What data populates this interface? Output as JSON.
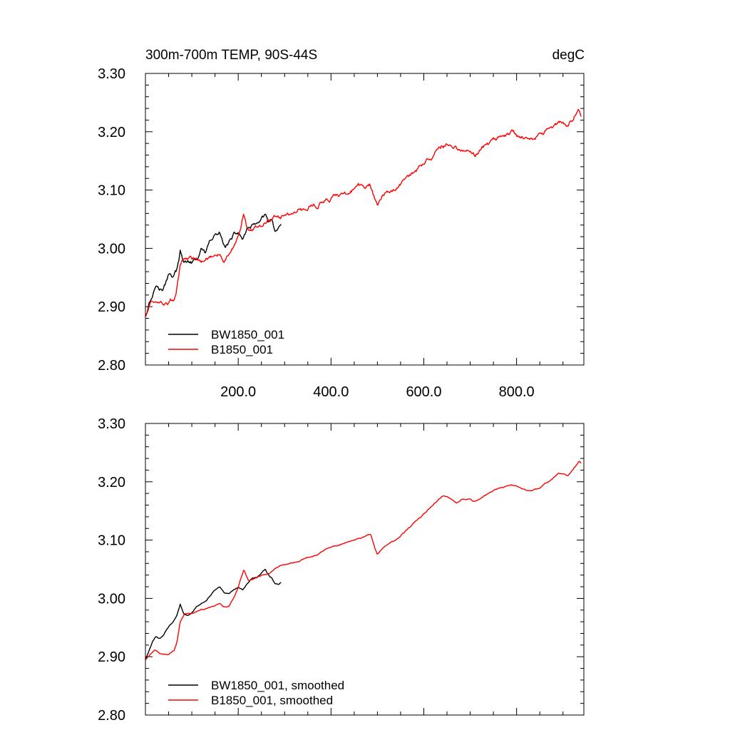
{
  "chart_data": [
    {
      "type": "line",
      "title": "300m-700m TEMP, 90S-44S",
      "units": "degC",
      "xlim": [
        0,
        945
      ],
      "ylim": [
        2.8,
        3.3
      ],
      "x_ticks": [
        200,
        400,
        600,
        800
      ],
      "x_tick_labels": [
        "200.0",
        "400.0",
        "600.0",
        "800.0"
      ],
      "y_ticks": [
        2.8,
        2.9,
        3.0,
        3.1,
        3.2,
        3.3
      ],
      "y_tick_labels": [
        "2.80",
        "2.90",
        "3.00",
        "3.10",
        "3.20",
        "3.30"
      ],
      "legend_position": "bottom-left",
      "series": [
        {
          "name": "BW1850_001",
          "color": "#000000",
          "noise": 0.006,
          "points": [
            [
              0,
              2.885
            ],
            [
              8,
              2.91
            ],
            [
              15,
              2.92
            ],
            [
              22,
              2.945
            ],
            [
              30,
              2.935
            ],
            [
              38,
              2.93
            ],
            [
              45,
              2.945
            ],
            [
              52,
              2.96
            ],
            [
              60,
              2.955
            ],
            [
              68,
              2.965
            ],
            [
              75,
              2.995
            ],
            [
              82,
              2.975
            ],
            [
              90,
              2.98
            ],
            [
              100,
              2.975
            ],
            [
              110,
              2.98
            ],
            [
              120,
              2.995
            ],
            [
              130,
              2.99
            ],
            [
              140,
              3.01
            ],
            [
              150,
              3.02
            ],
            [
              160,
              3.025
            ],
            [
              170,
              3.005
            ],
            [
              180,
              3.01
            ],
            [
              190,
              3.02
            ],
            [
              200,
              3.025
            ],
            [
              210,
              3.015
            ],
            [
              220,
              3.03
            ],
            [
              230,
              3.04
            ],
            [
              240,
              3.035
            ],
            [
              250,
              3.05
            ],
            [
              258,
              3.055
            ],
            [
              265,
              3.04
            ],
            [
              272,
              3.045
            ],
            [
              280,
              3.025
            ],
            [
              288,
              3.03
            ],
            [
              293,
              3.035
            ]
          ]
        },
        {
          "name": "B1850_001",
          "color": "#ff0000",
          "noise": 0.006,
          "points": [
            [
              0,
              2.885
            ],
            [
              10,
              2.905
            ],
            [
              20,
              2.91
            ],
            [
              35,
              2.905
            ],
            [
              50,
              2.905
            ],
            [
              62,
              2.91
            ],
            [
              68,
              2.93
            ],
            [
              75,
              2.97
            ],
            [
              85,
              2.985
            ],
            [
              100,
              2.98
            ],
            [
              120,
              2.975
            ],
            [
              140,
              2.985
            ],
            [
              160,
              2.99
            ],
            [
              170,
              2.98
            ],
            [
              180,
              2.985
            ],
            [
              190,
              3.0
            ],
            [
              200,
              3.02
            ],
            [
              212,
              3.055
            ],
            [
              222,
              3.03
            ],
            [
              235,
              3.035
            ],
            [
              250,
              3.04
            ],
            [
              270,
              3.05
            ],
            [
              290,
              3.055
            ],
            [
              310,
              3.06
            ],
            [
              330,
              3.065
            ],
            [
              350,
              3.07
            ],
            [
              370,
              3.075
            ],
            [
              390,
              3.085
            ],
            [
              410,
              3.09
            ],
            [
              430,
              3.095
            ],
            [
              450,
              3.1
            ],
            [
              470,
              3.105
            ],
            [
              485,
              3.11
            ],
            [
              495,
              3.08
            ],
            [
              500,
              3.07
            ],
            [
              510,
              3.085
            ],
            [
              525,
              3.1
            ],
            [
              540,
              3.1
            ],
            [
              560,
              3.12
            ],
            [
              580,
              3.13
            ],
            [
              600,
              3.15
            ],
            [
              620,
              3.16
            ],
            [
              640,
              3.175
            ],
            [
              650,
              3.18
            ],
            [
              660,
              3.175
            ],
            [
              670,
              3.17
            ],
            [
              680,
              3.17
            ],
            [
              695,
              3.175
            ],
            [
              710,
              3.165
            ],
            [
              730,
              3.175
            ],
            [
              750,
              3.185
            ],
            [
              770,
              3.19
            ],
            [
              790,
              3.2
            ],
            [
              810,
              3.19
            ],
            [
              830,
              3.185
            ],
            [
              850,
              3.19
            ],
            [
              870,
              3.2
            ],
            [
              890,
              3.215
            ],
            [
              910,
              3.21
            ],
            [
              925,
              3.225
            ],
            [
              935,
              3.235
            ],
            [
              940,
              3.22
            ]
          ]
        }
      ]
    },
    {
      "type": "line",
      "xlim": [
        0,
        945
      ],
      "ylim": [
        2.8,
        3.3
      ],
      "y_ticks": [
        2.8,
        2.9,
        3.0,
        3.1,
        3.2,
        3.3
      ],
      "y_tick_labels": [
        "2.80",
        "2.90",
        "3.00",
        "3.10",
        "3.20",
        "3.30"
      ],
      "legend_position": "bottom-left",
      "series": [
        {
          "name": "BW1850_001, smoothed",
          "color": "#000000",
          "noise": 0.0015,
          "points": [
            [
              0,
              2.895
            ],
            [
              8,
              2.91
            ],
            [
              15,
              2.925
            ],
            [
              22,
              2.935
            ],
            [
              30,
              2.93
            ],
            [
              38,
              2.935
            ],
            [
              45,
              2.945
            ],
            [
              52,
              2.955
            ],
            [
              60,
              2.96
            ],
            [
              68,
              2.97
            ],
            [
              75,
              2.99
            ],
            [
              82,
              2.975
            ],
            [
              90,
              2.97
            ],
            [
              100,
              2.975
            ],
            [
              110,
              2.985
            ],
            [
              120,
              2.99
            ],
            [
              130,
              2.995
            ],
            [
              140,
              3.005
            ],
            [
              150,
              3.015
            ],
            [
              160,
              3.02
            ],
            [
              170,
              3.01
            ],
            [
              180,
              3.01
            ],
            [
              190,
              3.015
            ],
            [
              200,
              3.02
            ],
            [
              210,
              3.015
            ],
            [
              220,
              3.025
            ],
            [
              230,
              3.035
            ],
            [
              240,
              3.035
            ],
            [
              250,
              3.045
            ],
            [
              258,
              3.05
            ],
            [
              265,
              3.04
            ],
            [
              272,
              3.035
            ],
            [
              280,
              3.025
            ],
            [
              288,
              3.025
            ],
            [
              293,
              3.028
            ]
          ]
        },
        {
          "name": "B1850_001, smoothed",
          "color": "#ff0000",
          "noise": 0.0015,
          "points": [
            [
              0,
              2.895
            ],
            [
              10,
              2.905
            ],
            [
              20,
              2.91
            ],
            [
              35,
              2.905
            ],
            [
              50,
              2.905
            ],
            [
              62,
              2.91
            ],
            [
              68,
              2.925
            ],
            [
              75,
              2.96
            ],
            [
              85,
              2.975
            ],
            [
              100,
              2.975
            ],
            [
              120,
              2.98
            ],
            [
              140,
              2.985
            ],
            [
              160,
              2.99
            ],
            [
              170,
              2.985
            ],
            [
              180,
              2.985
            ],
            [
              190,
              3.0
            ],
            [
              200,
              3.02
            ],
            [
              212,
              3.05
            ],
            [
              222,
              3.03
            ],
            [
              235,
              3.035
            ],
            [
              250,
              3.04
            ],
            [
              270,
              3.045
            ],
            [
              290,
              3.055
            ],
            [
              310,
              3.06
            ],
            [
              330,
              3.065
            ],
            [
              350,
              3.07
            ],
            [
              370,
              3.075
            ],
            [
              390,
              3.085
            ],
            [
              410,
              3.09
            ],
            [
              430,
              3.095
            ],
            [
              450,
              3.1
            ],
            [
              470,
              3.105
            ],
            [
              485,
              3.11
            ],
            [
              495,
              3.085
            ],
            [
              500,
              3.075
            ],
            [
              510,
              3.085
            ],
            [
              525,
              3.095
            ],
            [
              540,
              3.1
            ],
            [
              560,
              3.115
            ],
            [
              580,
              3.13
            ],
            [
              600,
              3.145
            ],
            [
              620,
              3.16
            ],
            [
              640,
              3.175
            ],
            [
              650,
              3.175
            ],
            [
              660,
              3.17
            ],
            [
              670,
              3.165
            ],
            [
              680,
              3.17
            ],
            [
              695,
              3.17
            ],
            [
              710,
              3.165
            ],
            [
              730,
              3.175
            ],
            [
              750,
              3.185
            ],
            [
              770,
              3.19
            ],
            [
              790,
              3.195
            ],
            [
              810,
              3.19
            ],
            [
              830,
              3.185
            ],
            [
              850,
              3.19
            ],
            [
              870,
              3.2
            ],
            [
              890,
              3.215
            ],
            [
              910,
              3.21
            ],
            [
              925,
              3.225
            ],
            [
              935,
              3.235
            ],
            [
              940,
              3.23
            ]
          ]
        }
      ]
    }
  ]
}
